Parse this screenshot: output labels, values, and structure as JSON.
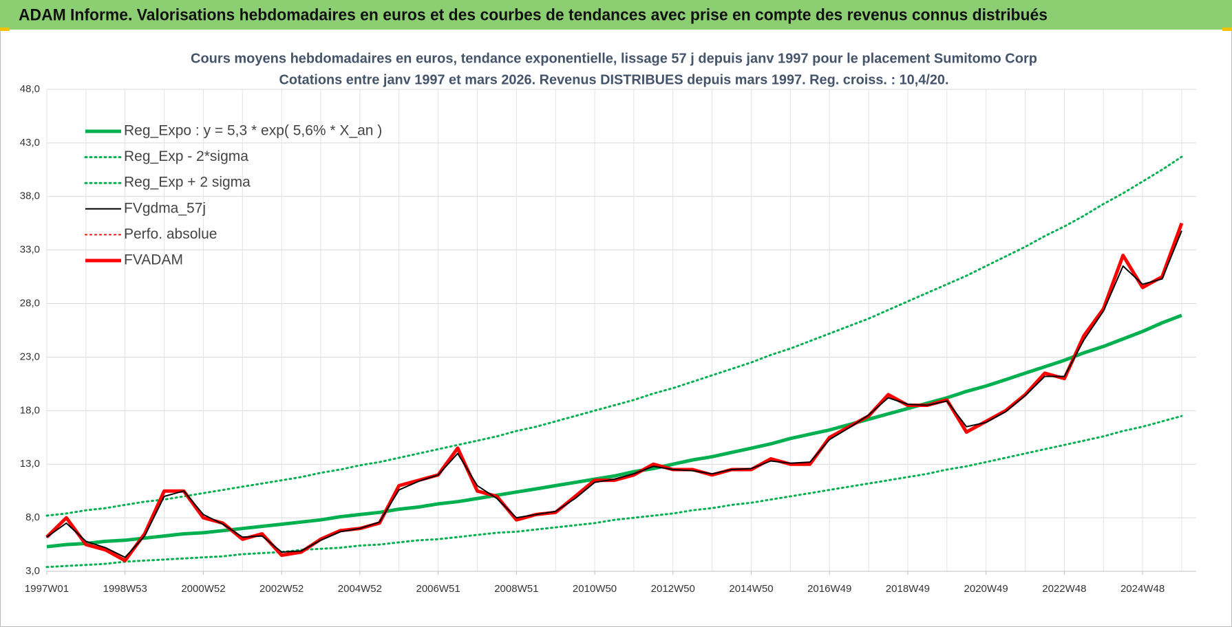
{
  "header": {
    "title": "ADAM Informe. Valorisations hebdomadaires en euros et des courbes de tendances avec prise en compte des revenus connus distribués"
  },
  "chart_data": {
    "type": "line",
    "title": "Cours moyens hebdomadaires en euros, tendance exponentielle, lissage 57 j depuis janv 1997  pour le placement Sumitomo Corp",
    "subtitle": "Cotations entre janv 1997 et mars 2026. Revenus DISTRIBUES depuis mars 1997. Reg. croiss. : 10,4/20.",
    "categories": [
      "1997W01",
      null,
      null,
      null,
      "1998W53",
      null,
      null,
      null,
      "2000W52",
      null,
      null,
      null,
      "2002W52",
      null,
      null,
      null,
      "2004W52",
      null,
      null,
      null,
      "2006W51",
      null,
      null,
      null,
      "2008W51",
      null,
      null,
      null,
      "2010W50",
      null,
      null,
      null,
      "2012W50",
      null,
      null,
      null,
      "2014W50",
      null,
      null,
      null,
      "2016W49",
      null,
      null,
      null,
      "2018W49",
      null,
      null,
      null,
      "2020W49",
      null,
      null,
      null,
      "2022W48",
      null,
      null,
      null,
      "2024W48",
      null,
      null
    ],
    "ylim": [
      3,
      48
    ],
    "yticks": [
      {
        "value": 3,
        "label": "3,0"
      },
      {
        "value": 8,
        "label": "8,0"
      },
      {
        "value": 13,
        "label": "13,0"
      },
      {
        "value": 18,
        "label": "18,0"
      },
      {
        "value": 23,
        "label": "23,0"
      },
      {
        "value": 28,
        "label": "28,0"
      },
      {
        "value": 33,
        "label": "33,0"
      },
      {
        "value": 38,
        "label": "38,0"
      },
      {
        "value": 43,
        "label": "43,0"
      },
      {
        "value": 48,
        "label": "48,0"
      }
    ],
    "grid": true,
    "legend": "upper left",
    "series": [
      {
        "name": "Reg_Expo : y = 5,3 * exp( 5,6% *  X_an )",
        "color": "#00b050",
        "style": "solid",
        "weight": "thick",
        "values": [
          5.3,
          5.5,
          5.6,
          5.8,
          5.9,
          6.1,
          6.3,
          6.5,
          6.6,
          6.8,
          7.0,
          7.2,
          7.4,
          7.6,
          7.8,
          8.1,
          8.3,
          8.5,
          8.8,
          9.0,
          9.3,
          9.5,
          9.8,
          10.1,
          10.4,
          10.7,
          11.0,
          11.3,
          11.6,
          11.9,
          12.3,
          12.6,
          13.0,
          13.4,
          13.7,
          14.1,
          14.5,
          14.9,
          15.4,
          15.8,
          16.2,
          16.7,
          17.2,
          17.7,
          18.2,
          18.7,
          19.2,
          19.8,
          20.3,
          20.9,
          21.5,
          22.1,
          22.7,
          23.4,
          24.0,
          24.7,
          25.4,
          26.2,
          26.9
        ]
      },
      {
        "name": "Reg_Exp - 2*sigma",
        "color": "#00b050",
        "style": "dotted",
        "weight": "medium",
        "values": [
          3.4,
          3.5,
          3.6,
          3.7,
          3.9,
          4.0,
          4.1,
          4.2,
          4.3,
          4.4,
          4.6,
          4.7,
          4.8,
          5.0,
          5.1,
          5.2,
          5.4,
          5.5,
          5.7,
          5.9,
          6.0,
          6.2,
          6.4,
          6.6,
          6.7,
          6.9,
          7.1,
          7.3,
          7.5,
          7.8,
          8.0,
          8.2,
          8.4,
          8.7,
          8.9,
          9.2,
          9.4,
          9.7,
          10.0,
          10.3,
          10.6,
          10.9,
          11.2,
          11.5,
          11.8,
          12.1,
          12.5,
          12.8,
          13.2,
          13.6,
          14.0,
          14.4,
          14.8,
          15.2,
          15.6,
          16.1,
          16.5,
          17.0,
          17.5
        ]
      },
      {
        "name": "Reg_Exp + 2 sigma",
        "color": "#00b050",
        "style": "dotted",
        "weight": "medium",
        "values": [
          8.2,
          8.4,
          8.7,
          8.9,
          9.2,
          9.5,
          9.7,
          10.0,
          10.3,
          10.6,
          10.9,
          11.2,
          11.5,
          11.8,
          12.2,
          12.5,
          12.9,
          13.2,
          13.6,
          14.0,
          14.4,
          14.8,
          15.2,
          15.6,
          16.1,
          16.5,
          17.0,
          17.5,
          18.0,
          18.5,
          19.0,
          19.6,
          20.1,
          20.7,
          21.3,
          21.9,
          22.5,
          23.2,
          23.8,
          24.5,
          25.2,
          25.9,
          26.6,
          27.4,
          28.2,
          29.0,
          29.8,
          30.6,
          31.5,
          32.4,
          33.3,
          34.3,
          35.2,
          36.2,
          37.3,
          38.3,
          39.4,
          40.5,
          41.7
        ]
      },
      {
        "name": "FVgdma_57j",
        "color": "#000000",
        "style": "solid",
        "weight": "thin",
        "values": [
          6.2,
          7.5,
          5.8,
          5.2,
          4.3,
          6.3,
          10.0,
          10.5,
          8.3,
          7.4,
          6.2,
          6.3,
          4.8,
          4.9,
          5.9,
          6.7,
          7.0,
          7.6,
          10.6,
          11.4,
          12.0,
          14.0,
          11.0,
          9.8,
          8.0,
          8.3,
          8.6,
          9.8,
          11.3,
          11.6,
          12.1,
          12.8,
          12.5,
          12.4,
          12.1,
          12.5,
          12.6,
          13.3,
          13.1,
          13.2,
          15.3,
          16.4,
          17.6,
          19.2,
          18.6,
          18.5,
          18.9,
          16.5,
          16.9,
          17.9,
          19.4,
          21.2,
          21.2,
          24.6,
          27.3,
          31.5,
          29.8,
          30.3,
          34.8
        ]
      },
      {
        "name": "Perfo. absolue",
        "color": "#ff0000",
        "style": "dotted",
        "weight": "thin",
        "values": [
          6.2,
          8.0,
          5.5,
          5.0,
          4.0,
          6.5,
          10.5,
          10.5,
          8.0,
          7.5,
          6.0,
          6.5,
          4.5,
          4.8,
          6.0,
          6.8,
          7.0,
          7.5,
          11.0,
          11.5,
          12.0,
          14.5,
          10.5,
          10.0,
          7.8,
          8.3,
          8.5,
          10.0,
          11.5,
          11.5,
          12.0,
          13.0,
          12.5,
          12.5,
          12.0,
          12.5,
          12.5,
          13.5,
          13.0,
          13.0,
          15.5,
          16.5,
          17.5,
          19.5,
          18.5,
          18.5,
          19.0,
          16.0,
          17.0,
          18.0,
          19.5,
          21.5,
          21.0,
          25.0,
          27.5,
          32.5,
          29.5,
          30.5,
          35.5
        ]
      },
      {
        "name": "FVADAM",
        "color": "#ff0000",
        "style": "solid",
        "weight": "thick",
        "values": [
          6.2,
          8.0,
          5.5,
          5.0,
          4.0,
          6.5,
          10.5,
          10.5,
          8.0,
          7.5,
          6.0,
          6.5,
          4.5,
          4.8,
          6.0,
          6.8,
          7.0,
          7.5,
          11.0,
          11.5,
          12.0,
          14.5,
          10.5,
          10.0,
          7.8,
          8.3,
          8.5,
          10.0,
          11.5,
          11.5,
          12.0,
          13.0,
          12.5,
          12.5,
          12.0,
          12.5,
          12.5,
          13.5,
          13.0,
          13.0,
          15.5,
          16.5,
          17.5,
          19.5,
          18.5,
          18.5,
          19.0,
          16.0,
          17.0,
          18.0,
          19.5,
          21.5,
          21.0,
          25.0,
          27.5,
          32.5,
          29.5,
          30.5,
          35.5
        ]
      }
    ]
  }
}
